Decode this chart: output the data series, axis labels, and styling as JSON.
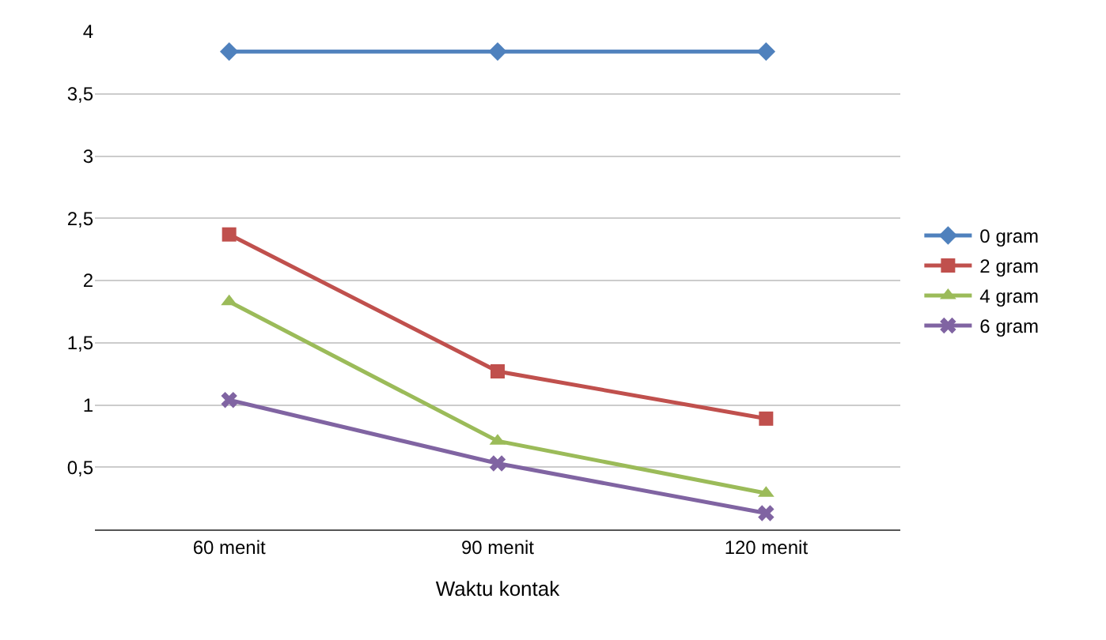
{
  "chart_data": {
    "type": "line",
    "xlabel": "Waktu kontak",
    "categories": [
      "60 menit",
      "90 menit",
      "120 menit"
    ],
    "series": [
      {
        "name": "0 gram",
        "color": "#4f81bd",
        "marker": "diamond",
        "values": [
          3.84,
          3.84,
          3.84
        ]
      },
      {
        "name": "2 gram",
        "color": "#c0504d",
        "marker": "square",
        "values": [
          2.37,
          1.27,
          0.89
        ]
      },
      {
        "name": "4 gram",
        "color": "#9bbb59",
        "marker": "triangle",
        "values": [
          1.83,
          0.71,
          0.29
        ]
      },
      {
        "name": "6 gram",
        "color": "#8064a2",
        "marker": "cross",
        "values": [
          1.04,
          0.53,
          0.13
        ]
      }
    ],
    "ylim": [
      0,
      4
    ],
    "yticks": [
      {
        "value": 0,
        "label": null
      },
      {
        "value": 0.5,
        "label": "0,5"
      },
      1,
      {
        "value": 1.5,
        "label": "1,5"
      },
      2,
      {
        "value": 2.5,
        "label": "2,5"
      },
      3,
      {
        "value": 3.5,
        "label": "3,5"
      },
      4
    ],
    "grid": "y",
    "legend": "right"
  }
}
